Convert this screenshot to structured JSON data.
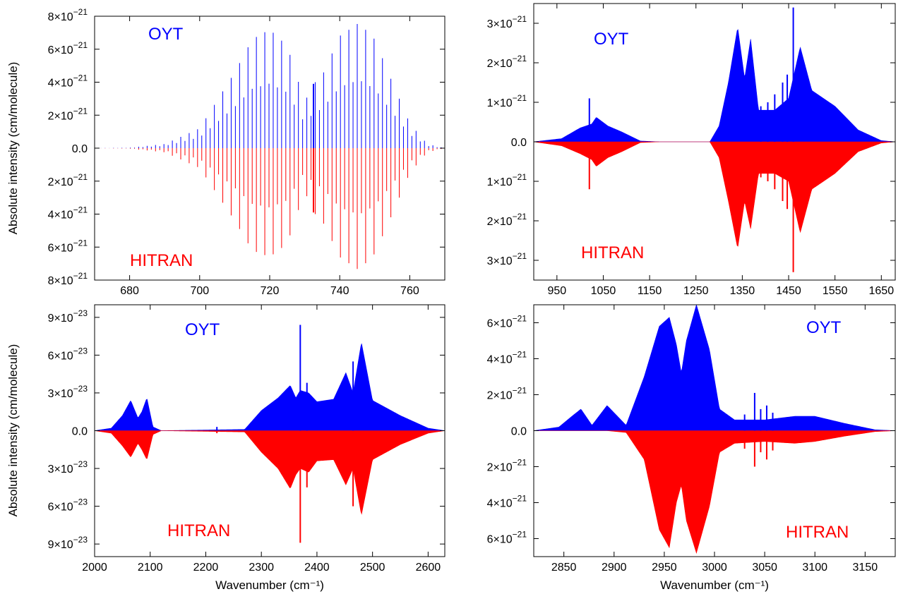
{
  "figure": {
    "ylabel": "Absolute intensity (cm/molecule)",
    "xlabel": "Wavenumber (cm⁻¹)",
    "colors": {
      "oyt": "#0000ff",
      "hitran": "#ff0000",
      "axis": "#000000",
      "background": "#ffffff"
    }
  },
  "chart_data": [
    {
      "type": "line",
      "panel": "top-left",
      "xlim": [
        670,
        770
      ],
      "ylim": [
        -8e-21,
        8e-21
      ],
      "xticks": [
        680,
        700,
        720,
        740,
        760
      ],
      "xtick_labels": [
        "680",
        "700",
        "720",
        "740",
        "760"
      ],
      "yticks": [
        8e-21,
        6e-21,
        4e-21,
        2e-21,
        0,
        -2e-21,
        -4e-21,
        -6e-21,
        -8e-21
      ],
      "ytick_labels": [
        {
          "mant": "8",
          "exp": "−21"
        },
        {
          "mant": "6",
          "exp": "−21"
        },
        {
          "mant": "4",
          "exp": "−21"
        },
        {
          "mant": "2",
          "exp": "−21"
        },
        {
          "mant": "0.0",
          "exp": ""
        },
        {
          "mant": "2",
          "exp": "−21"
        },
        {
          "mant": "4",
          "exp": "−21"
        },
        {
          "mant": "6",
          "exp": "−21"
        },
        {
          "mant": "8",
          "exp": "−21"
        }
      ],
      "series": [
        {
          "name": "OYT",
          "color": "#0000ff",
          "sign": 1,
          "x": [
            670,
            680,
            690,
            700,
            710,
            715,
            720,
            725,
            730,
            732.5,
            735,
            740,
            745.5,
            750,
            755,
            760,
            765,
            770
          ],
          "envelope": [
            0.0,
            3e-23,
            2.5e-22,
            1.2e-21,
            4.6e-21,
            6.6e-21,
            7.2e-21,
            6.2e-21,
            2.8e-21,
            3.9e-21,
            4.4e-21,
            6.8e-21,
            7.6e-21,
            6.6e-21,
            4e-21,
            1.5e-21,
            2.5e-22,
            0.0
          ]
        },
        {
          "name": "HITRAN",
          "color": "#ff0000",
          "sign": -1,
          "x": [
            670,
            680,
            690,
            700,
            710,
            715,
            720,
            725,
            730,
            732.5,
            735,
            740,
            745.5,
            750,
            755,
            760,
            765,
            770
          ],
          "envelope": [
            0.0,
            3e-23,
            2.5e-22,
            1.2e-21,
            4.4e-21,
            6.2e-21,
            6.6e-21,
            5.8e-21,
            2.6e-21,
            3.9e-21,
            4.4e-21,
            6.6e-21,
            7.4e-21,
            6.4e-21,
            4e-21,
            1.5e-21,
            2.5e-22,
            0.0
          ]
        }
      ],
      "lines": true,
      "line_step": 1.2,
      "floor": 0.3,
      "spikes": [
        {
          "x": 732.5,
          "oyt": 3.9e-21,
          "hitran": 3.9e-21
        }
      ]
    },
    {
      "type": "line",
      "panel": "top-right",
      "xlim": [
        900,
        1680
      ],
      "ylim": [
        -3.5e-21,
        3.5e-21
      ],
      "xticks": [
        950,
        1050,
        1150,
        1250,
        1350,
        1450,
        1550,
        1650
      ],
      "xtick_labels": [
        "950",
        "1050",
        "1150",
        "1250",
        "1350",
        "1450",
        "1550",
        "1650"
      ],
      "yticks": [
        3e-21,
        2e-21,
        1e-21,
        0,
        -1e-21,
        -2e-21,
        -3e-21
      ],
      "ytick_labels": [
        {
          "mant": "3",
          "exp": "−21"
        },
        {
          "mant": "2",
          "exp": "−21"
        },
        {
          "mant": "1",
          "exp": "−21"
        },
        {
          "mant": "0.0",
          "exp": ""
        },
        {
          "mant": "1",
          "exp": "−21"
        },
        {
          "mant": "2",
          "exp": "−21"
        },
        {
          "mant": "3",
          "exp": "−21"
        }
      ],
      "series": [
        {
          "name": "OYT",
          "color": "#0000ff",
          "sign": 1,
          "x": [
            900,
            960,
            1000,
            1025,
            1035,
            1060,
            1090,
            1130,
            1170,
            1280,
            1300,
            1320,
            1340,
            1355,
            1368,
            1385,
            1420,
            1450,
            1475,
            1500,
            1550,
            1600,
            1650,
            1680
          ],
          "envelope": [
            0.0,
            8e-23,
            3.5e-22,
            4.5e-22,
            6.2e-22,
            4e-22,
            2.5e-22,
            2e-23,
            0.0,
            0.0,
            4e-22,
            1.5e-21,
            2.9e-21,
            1.6e-21,
            2.6e-21,
            8e-22,
            8e-22,
            1.1e-21,
            2.4e-21,
            1.3e-21,
            9e-22,
            3e-22,
            3e-23,
            0.0
          ]
        },
        {
          "name": "HITRAN",
          "color": "#ff0000",
          "sign": -1,
          "x": [
            900,
            960,
            1000,
            1025,
            1035,
            1060,
            1090,
            1130,
            1170,
            1280,
            1300,
            1320,
            1340,
            1355,
            1368,
            1385,
            1420,
            1450,
            1475,
            1500,
            1550,
            1600,
            1650,
            1680
          ],
          "envelope": [
            0.0,
            1e-22,
            3e-22,
            4.5e-22,
            6.2e-22,
            4e-22,
            2.5e-22,
            2e-23,
            0.0,
            0.0,
            4e-22,
            1.5e-21,
            2.7e-21,
            1.5e-21,
            2.2e-21,
            8e-22,
            8e-22,
            1e-21,
            2.3e-21,
            1.2e-21,
            8e-22,
            2.5e-22,
            3e-23,
            0.0
          ]
        }
      ],
      "lines": false,
      "spikes": [
        {
          "x": 1020,
          "oyt": 1.1e-21,
          "hitran": 1.2e-21
        },
        {
          "x": 1390,
          "oyt": 9e-22,
          "hitran": 9e-22
        },
        {
          "x": 1405,
          "oyt": 1e-21,
          "hitran": 1e-21
        },
        {
          "x": 1420,
          "oyt": 1.2e-21,
          "hitran": 1.2e-21
        },
        {
          "x": 1437,
          "oyt": 1.5e-21,
          "hitran": 1.5e-21
        },
        {
          "x": 1447,
          "oyt": 1.7e-21,
          "hitran": 1.7e-21
        },
        {
          "x": 1460,
          "oyt": 3.4e-21,
          "hitran": 3.3e-21
        }
      ]
    },
    {
      "type": "line",
      "panel": "bottom-left",
      "xlim": [
        2000,
        2630
      ],
      "ylim": [
        -1e-22,
        1e-22
      ],
      "xticks": [
        2000,
        2100,
        2200,
        2300,
        2400,
        2500,
        2600
      ],
      "xtick_labels": [
        "2000",
        "2100",
        "2200",
        "2300",
        "2400",
        "2500",
        "2600"
      ],
      "yticks": [
        9e-23,
        6e-23,
        3e-23,
        0,
        -3e-23,
        -6e-23,
        -9e-23
      ],
      "ytick_labels": [
        {
          "mant": "9",
          "exp": "−23"
        },
        {
          "mant": "6",
          "exp": "−23"
        },
        {
          "mant": "3",
          "exp": "−23"
        },
        {
          "mant": "0.0",
          "exp": ""
        },
        {
          "mant": "3",
          "exp": "−23"
        },
        {
          "mant": "6",
          "exp": "−23"
        },
        {
          "mant": "9",
          "exp": "−23"
        }
      ],
      "series": [
        {
          "name": "OYT",
          "color": "#0000ff",
          "sign": 1,
          "x": [
            2000,
            2030,
            2050,
            2065,
            2078,
            2085,
            2094,
            2105,
            2120,
            2270,
            2300,
            2330,
            2352,
            2362,
            2370,
            2385,
            2400,
            2430,
            2452,
            2465,
            2480,
            2500,
            2550,
            2600,
            2630
          ],
          "envelope": [
            0.0,
            2e-24,
            1.2e-23,
            2.4e-23,
            1e-23,
            1.5e-23,
            2.6e-23,
            3e-24,
            0.0,
            1e-24,
            1.6e-23,
            2.6e-23,
            3.6e-23,
            2.6e-23,
            3.2e-23,
            3e-23,
            2.3e-23,
            2.5e-23,
            4.6e-23,
            3e-23,
            7e-23,
            2.4e-23,
            1.2e-23,
            2e-24,
            0.0
          ]
        },
        {
          "name": "HITRAN",
          "color": "#ff0000",
          "sign": -1,
          "x": [
            2000,
            2030,
            2050,
            2065,
            2078,
            2085,
            2094,
            2105,
            2120,
            2270,
            2300,
            2330,
            2352,
            2362,
            2370,
            2385,
            2400,
            2430,
            2452,
            2465,
            2480,
            2500,
            2550,
            2600,
            2630
          ],
          "envelope": [
            0.0,
            2e-24,
            1.2e-23,
            2.1e-23,
            1e-23,
            1.5e-23,
            2.3e-23,
            3e-24,
            0.0,
            1e-24,
            1.7e-23,
            3e-23,
            4.6e-23,
            3.5e-23,
            3e-23,
            3.3e-23,
            2.4e-23,
            2.3e-23,
            4.3e-23,
            3e-23,
            6.7e-23,
            2.3e-23,
            1.1e-23,
            2e-24,
            0.0
          ]
        }
      ],
      "lines": false,
      "spikes": [
        {
          "x": 2220,
          "oyt": 3e-24,
          "hitran": 2e-24
        },
        {
          "x": 2370,
          "oyt": 8.4e-23,
          "hitran": 8.9e-23
        },
        {
          "x": 2382,
          "oyt": 3.8e-23,
          "hitran": 4.5e-23
        },
        {
          "x": 2465,
          "oyt": 5.5e-23,
          "hitran": 6e-23
        }
      ]
    },
    {
      "type": "line",
      "panel": "bottom-right",
      "xlim": [
        2820,
        3180
      ],
      "ylim": [
        -7e-21,
        7e-21
      ],
      "xticks": [
        2850,
        2900,
        2950,
        3000,
        3050,
        3100,
        3150
      ],
      "xtick_labels": [
        "2850",
        "2900",
        "2950",
        "3000",
        "3050",
        "3100",
        "3150"
      ],
      "yticks": [
        6e-21,
        4e-21,
        2e-21,
        0,
        -2e-21,
        -4e-21,
        -6e-21
      ],
      "ytick_labels": [
        {
          "mant": "6",
          "exp": "−21"
        },
        {
          "mant": "4",
          "exp": "−21"
        },
        {
          "mant": "2",
          "exp": "−21"
        },
        {
          "mant": "0.0",
          "exp": ""
        },
        {
          "mant": "2",
          "exp": "−21"
        },
        {
          "mant": "4",
          "exp": "−21"
        },
        {
          "mant": "6",
          "exp": "−21"
        }
      ],
      "series": [
        {
          "name": "OYT",
          "color": "#0000ff",
          "sign": 1,
          "x": [
            2820,
            2845,
            2858,
            2867,
            2878,
            2893,
            2912,
            2930,
            2945,
            2955,
            2962,
            2967,
            2972,
            2982,
            2995,
            3005,
            3020,
            3050,
            3080,
            3100,
            3130,
            3160,
            3180
          ],
          "envelope": [
            0.0,
            2e-22,
            8e-22,
            1.2e-21,
            3e-22,
            1.4e-21,
            3e-22,
            3e-21,
            5.8e-21,
            6.3e-21,
            4.8e-21,
            3.2e-21,
            5e-21,
            7e-21,
            4.5e-21,
            1.2e-21,
            6e-22,
            6e-22,
            8e-22,
            8e-22,
            4e-22,
            5e-23,
            0.0
          ]
        },
        {
          "name": "HITRAN",
          "color": "#ff0000",
          "sign": -1,
          "x": [
            2820,
            2845,
            2858,
            2867,
            2878,
            2893,
            2912,
            2930,
            2945,
            2955,
            2962,
            2967,
            2972,
            2982,
            2995,
            3005,
            3020,
            3050,
            3080,
            3100,
            3130,
            3160,
            3180
          ],
          "envelope": [
            0.0,
            0.0,
            0.0,
            0.0,
            0.0,
            0.0,
            1e-22,
            1.6e-21,
            5.5e-21,
            6.5e-21,
            4e-21,
            3e-21,
            5e-21,
            6.8e-21,
            4.2e-21,
            1.2e-21,
            7e-22,
            6e-22,
            7e-22,
            6e-22,
            3e-22,
            5e-23,
            0.0
          ]
        }
      ],
      "lines": false,
      "spikes": [
        {
          "x": 3030,
          "oyt": 9e-22,
          "hitran": 1e-21
        },
        {
          "x": 3040,
          "oyt": 2.1e-21,
          "hitran": 2e-21
        },
        {
          "x": 3046,
          "oyt": 1.2e-21,
          "hitran": 1.2e-21
        },
        {
          "x": 3052,
          "oyt": 1.4e-21,
          "hitran": 1.6e-21
        },
        {
          "x": 3058,
          "oyt": 1e-21,
          "hitran": 1.1e-21
        }
      ]
    }
  ],
  "panel_labels": [
    {
      "oyt": "OYT",
      "hitran": "HITRAN"
    },
    {
      "oyt": "OYT",
      "hitran": "HITRAN"
    },
    {
      "oyt": "OYT",
      "hitran": "HITRAN"
    },
    {
      "oyt": "OYT",
      "hitran": "HITRAN"
    }
  ]
}
